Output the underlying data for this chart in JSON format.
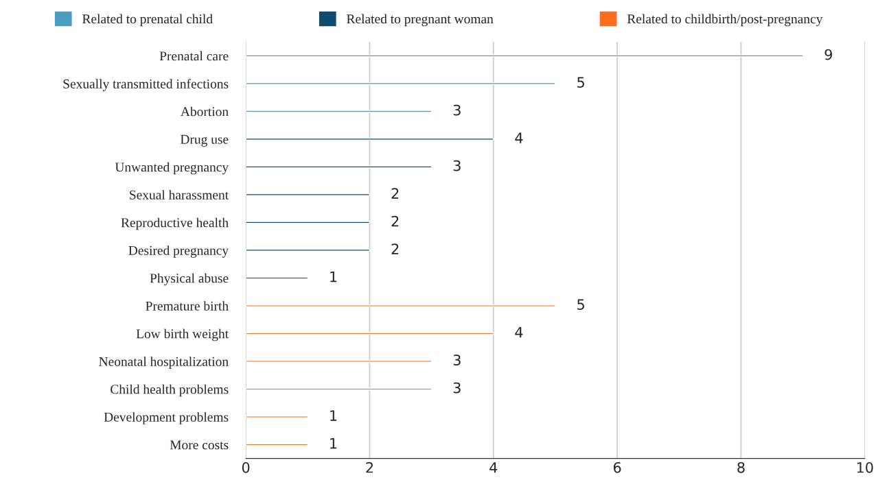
{
  "chart_data": {
    "type": "bar",
    "orientation": "horizontal",
    "categories": [
      "Prenatal care",
      "Sexually transmitted infections",
      "Abortion",
      "Drug use",
      "Unwanted pregnancy",
      "Sexual harassment",
      "Reproductive health",
      "Desired pregnancy",
      "Physical abuse",
      "Premature birth",
      "Low birth weight",
      "Neonatal hospitalization",
      "Child health problems",
      "Development problems",
      "More costs"
    ],
    "series": [
      {
        "name": "Related to prenatal child",
        "color": "#4b9cc0",
        "values": [
          9,
          5,
          3,
          null,
          null,
          null,
          null,
          null,
          null,
          null,
          null,
          null,
          null,
          null,
          null
        ]
      },
      {
        "name": "Related to pregnant woman",
        "color": "#0e4b6c",
        "values": [
          null,
          null,
          null,
          4,
          3,
          2,
          2,
          2,
          1,
          null,
          null,
          null,
          null,
          null,
          null
        ]
      },
      {
        "name": "Related to childbirth/post-pregnancy",
        "color": "#ff6d1f",
        "values": [
          null,
          null,
          null,
          null,
          null,
          null,
          null,
          null,
          null,
          5,
          4,
          3,
          3,
          1,
          1
        ]
      }
    ],
    "xlim": [
      0,
      10
    ],
    "xticks": [
      0,
      2,
      4,
      6,
      8,
      10
    ],
    "grid": "x",
    "legend": "top",
    "data_labels": true
  }
}
